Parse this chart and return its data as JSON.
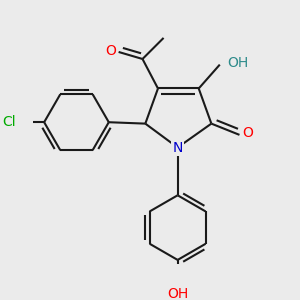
{
  "bg_color": "#ebebeb",
  "bond_color": "#1a1a1a",
  "bond_width": 1.5,
  "dbo": 0.018,
  "atom_colors": {
    "O": "#ff0000",
    "N": "#0000cc",
    "Cl": "#00aa00",
    "OH_teal": "#2e8b8b"
  },
  "font_size": 10,
  "figsize": [
    3.0,
    3.0
  ],
  "dpi": 100
}
